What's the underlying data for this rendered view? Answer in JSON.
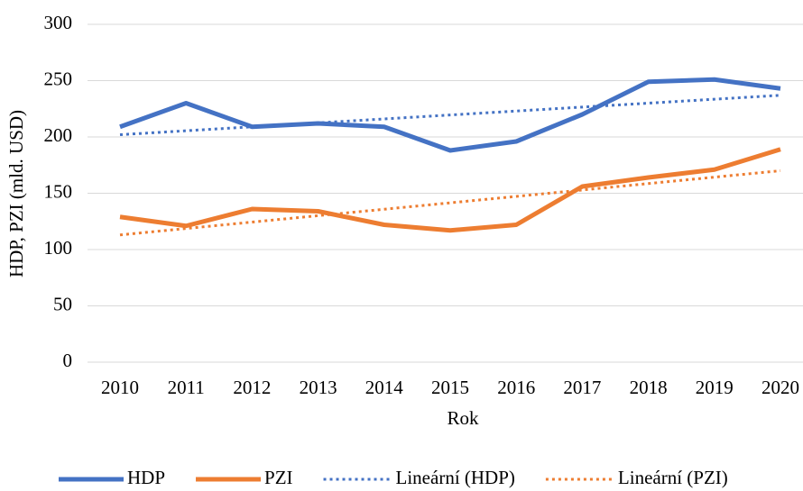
{
  "chart_data": {
    "type": "line",
    "x_label": "Rok",
    "y_label": "HDP, PZI (mld. USD)",
    "categories": [
      "2010",
      "2011",
      "2012",
      "2013",
      "2014",
      "2015",
      "2016",
      "2017",
      "2018",
      "2019",
      "2020"
    ],
    "series": [
      {
        "name": "HDP",
        "color": "#4472c4",
        "style": "solid",
        "values": [
          209,
          230,
          209,
          212,
          209,
          188,
          196,
          220,
          249,
          251,
          243
        ]
      },
      {
        "name": "PZI",
        "color": "#ed7d31",
        "style": "solid",
        "values": [
          129,
          121,
          136,
          134,
          122,
          117,
          122,
          156,
          164,
          171,
          189
        ]
      },
      {
        "name": "Lineární (HDP)",
        "color": "#4472c4",
        "style": "dotted",
        "values": [
          202,
          205.5,
          209,
          212.5,
          216,
          219.5,
          223,
          226.5,
          230,
          233.5,
          237
        ]
      },
      {
        "name": "Lineární (PZI)",
        "color": "#ed7d31",
        "style": "dotted",
        "values": [
          113,
          118.7,
          124.4,
          130.1,
          135.8,
          141.5,
          147.2,
          152.9,
          158.6,
          164.3,
          170
        ]
      }
    ],
    "ylim": [
      0,
      300
    ],
    "yticks": [
      0,
      50,
      100,
      150,
      200,
      250,
      300
    ],
    "grid": true,
    "legend": "bottom"
  }
}
